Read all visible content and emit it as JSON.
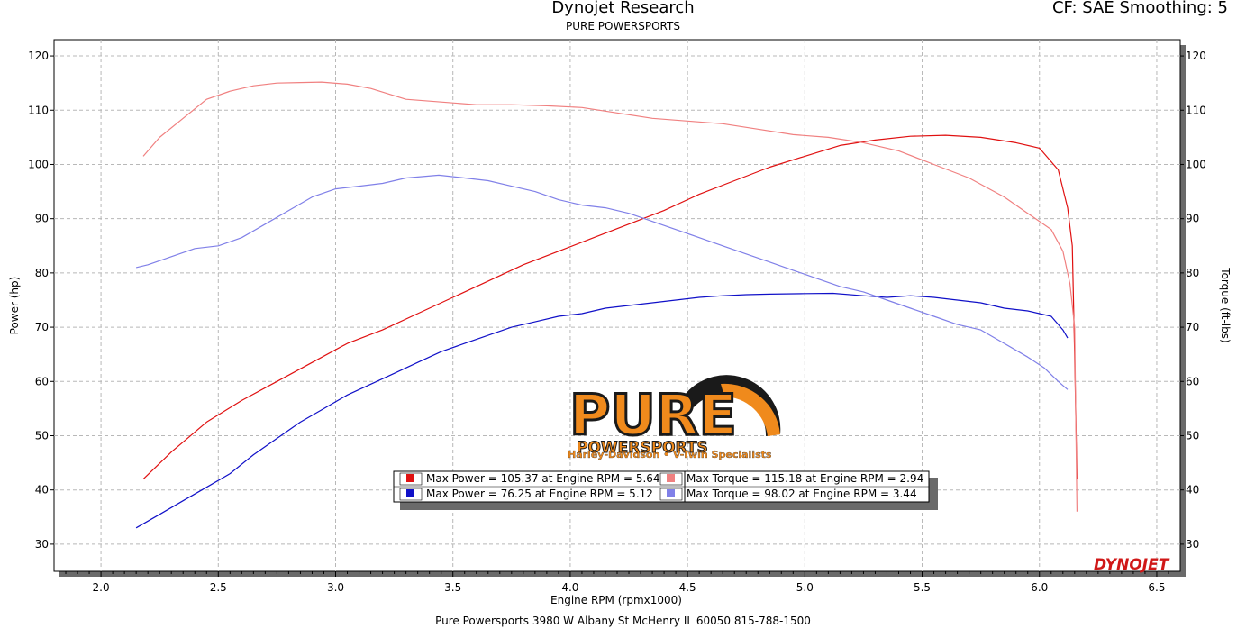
{
  "header": {
    "title": "Dynojet Research",
    "subtitle": "PURE POWERSPORTS",
    "settings": "CF: SAE Smoothing: 5"
  },
  "footer": "Pure Powersports 3980 W Albany St McHenry IL 60050 815-788-1500",
  "logo": {
    "word1": "PURE",
    "word2": "POWERSPORTS",
    "tagline": "Harley-Davidson • V-Twin Specialists",
    "brand_color": "#f08a1c"
  },
  "watermark": "DYNOJET",
  "legend": [
    {
      "text": "Max Power = 105.37 at Engine RPM = 5.64",
      "color": "#e01010"
    },
    {
      "text": "Max Torque = 115.18 at Engine RPM = 2.94",
      "color": "#f08080"
    },
    {
      "text": "Max Power = 76.25 at Engine RPM = 5.12",
      "color": "#1010c8"
    },
    {
      "text": "Max Torque = 98.02 at Engine RPM = 3.44",
      "color": "#8080e8"
    }
  ],
  "chart_data": {
    "type": "line",
    "xlabel": "Engine RPM (rpmx1000)",
    "ylabel": "Power (hp)",
    "y2label": "Torque (ft-lbs)",
    "xlim": [
      1.8,
      6.6
    ],
    "ylim": [
      25,
      123
    ],
    "xticks": [
      "2.0",
      "2.5",
      "3.0",
      "3.5",
      "4.0",
      "4.5",
      "5.0",
      "5.5",
      "6.0",
      "6.5"
    ],
    "yticks": [
      "30",
      "40",
      "50",
      "60",
      "70",
      "80",
      "90",
      "100",
      "110",
      "120"
    ],
    "grid": true,
    "series": [
      {
        "axis": "power",
        "color": "#e01010",
        "x": [
          2.18,
          2.3,
          2.45,
          2.6,
          2.75,
          2.9,
          3.05,
          3.2,
          3.35,
          3.5,
          3.65,
          3.8,
          3.95,
          4.1,
          4.25,
          4.4,
          4.55,
          4.7,
          4.85,
          5.0,
          5.15,
          5.3,
          5.45,
          5.6,
          5.75,
          5.9,
          6.0,
          6.08,
          6.12,
          6.14,
          6.15,
          6.16
        ],
        "y": [
          42,
          47,
          52.5,
          56.5,
          60,
          63.5,
          67,
          69.5,
          72.5,
          75.5,
          78.5,
          81.5,
          84,
          86.5,
          89,
          91.5,
          94.5,
          97,
          99.5,
          101.5,
          103.5,
          104.5,
          105.2,
          105.37,
          105,
          104,
          103,
          99,
          92,
          85,
          65,
          42
        ]
      },
      {
        "axis": "torque",
        "color": "#f08080",
        "x": [
          2.18,
          2.25,
          2.35,
          2.45,
          2.55,
          2.65,
          2.75,
          2.85,
          2.94,
          3.05,
          3.15,
          3.3,
          3.45,
          3.6,
          3.75,
          3.9,
          4.05,
          4.2,
          4.35,
          4.5,
          4.65,
          4.8,
          4.95,
          5.1,
          5.25,
          5.4,
          5.55,
          5.7,
          5.85,
          5.95,
          6.05,
          6.1,
          6.13,
          6.15,
          6.16
        ],
        "y": [
          101.5,
          105,
          108.5,
          112,
          113.5,
          114.5,
          115,
          115.1,
          115.18,
          114.8,
          114,
          112,
          111.5,
          111,
          111,
          110.8,
          110.5,
          109.5,
          108.5,
          108,
          107.5,
          106.5,
          105.5,
          105,
          104,
          102.5,
          100,
          97.5,
          94,
          91,
          88,
          84,
          78,
          70,
          36
        ]
      },
      {
        "axis": "power",
        "color": "#1010c8",
        "x": [
          2.15,
          2.25,
          2.35,
          2.45,
          2.55,
          2.65,
          2.75,
          2.85,
          2.95,
          3.05,
          3.15,
          3.25,
          3.35,
          3.45,
          3.55,
          3.65,
          3.75,
          3.85,
          3.95,
          4.05,
          4.15,
          4.25,
          4.35,
          4.45,
          4.55,
          4.65,
          4.75,
          4.85,
          5.0,
          5.12,
          5.25,
          5.35,
          5.45,
          5.55,
          5.65,
          5.75,
          5.85,
          5.95,
          6.05,
          6.1,
          6.12
        ],
        "y": [
          33,
          35.5,
          38,
          40.5,
          43,
          46.5,
          49.5,
          52.5,
          55,
          57.5,
          59.5,
          61.5,
          63.5,
          65.5,
          67,
          68.5,
          70,
          71,
          72,
          72.5,
          73.5,
          74,
          74.5,
          75,
          75.5,
          75.8,
          76,
          76.1,
          76.2,
          76.25,
          75.8,
          75.5,
          75.8,
          75.5,
          75,
          74.5,
          73.5,
          73,
          72,
          69.5,
          68
        ]
      },
      {
        "axis": "torque",
        "color": "#8080e8",
        "x": [
          2.15,
          2.2,
          2.3,
          2.4,
          2.5,
          2.6,
          2.7,
          2.8,
          2.9,
          3.0,
          3.1,
          3.2,
          3.3,
          3.44,
          3.55,
          3.65,
          3.75,
          3.85,
          3.95,
          4.05,
          4.15,
          4.25,
          4.35,
          4.45,
          4.55,
          4.65,
          4.75,
          4.85,
          4.95,
          5.05,
          5.15,
          5.25,
          5.35,
          5.45,
          5.55,
          5.65,
          5.75,
          5.85,
          5.95,
          6.02,
          6.08,
          6.12
        ],
        "y": [
          81,
          81.5,
          83,
          84.5,
          85,
          86.5,
          89,
          91.5,
          94,
          95.5,
          96,
          96.5,
          97.5,
          98.02,
          97.5,
          97,
          96,
          95,
          93.5,
          92.5,
          92,
          91,
          89.5,
          88,
          86.5,
          85,
          83.5,
          82,
          80.5,
          79,
          77.5,
          76.5,
          75,
          73.5,
          72,
          70.5,
          69.5,
          67,
          64.5,
          62.5,
          60,
          58.5
        ]
      }
    ]
  }
}
